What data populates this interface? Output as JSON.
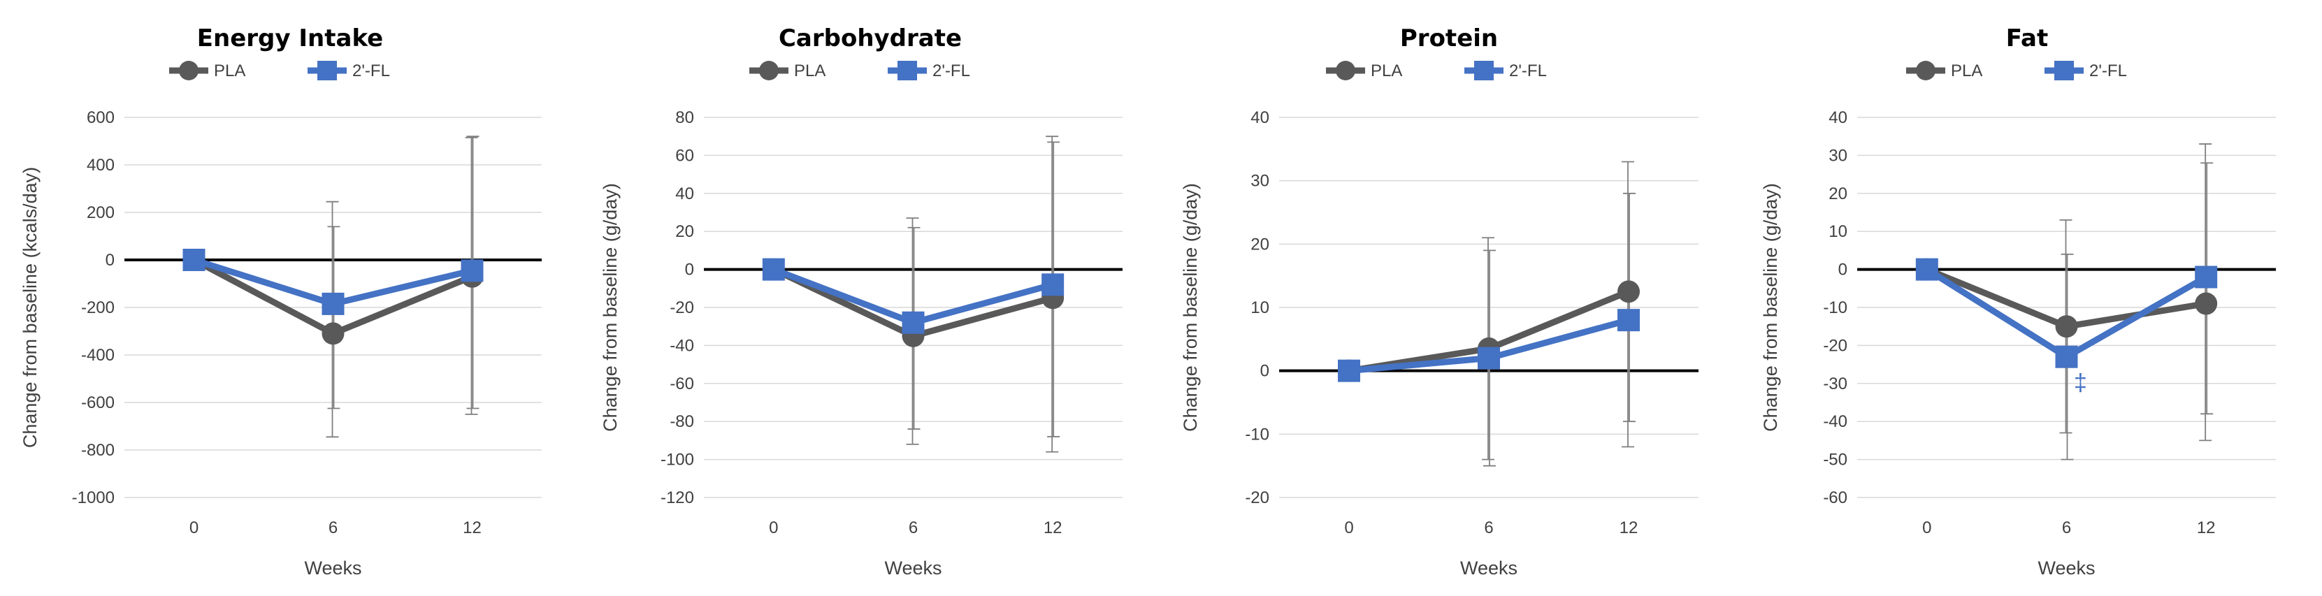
{
  "colors": {
    "pla": "#595959",
    "fl": "#4472c4",
    "zero": "#000000",
    "grid": "#d9d9d9",
    "error": "#7f7f7f"
  },
  "legend": {
    "pla": "PLA",
    "fl": "2'-FL"
  },
  "chart_data": [
    {
      "type": "line",
      "title": "Energy Intake",
      "xlabel": "Weeks",
      "ylabel": "Change from baseline (kcals/day)",
      "categories": [
        "0",
        "6",
        "12"
      ],
      "ylim": [
        -1000,
        600
      ],
      "ystep": 200,
      "series": [
        {
          "name": "PLA",
          "values": [
            0,
            -310,
            -70
          ],
          "err_low": [
            0,
            -745,
            -650
          ],
          "err_high": [
            0,
            245,
            515
          ]
        },
        {
          "name": "2'-FL",
          "values": [
            0,
            -185,
            -45
          ],
          "err_low": [
            0,
            -625,
            -625
          ],
          "err_high": [
            0,
            140,
            520
          ]
        }
      ],
      "annotations": []
    },
    {
      "type": "line",
      "title": "Carbohydrate",
      "xlabel": "Weeks",
      "ylabel": "Change from baseline (g/day)",
      "categories": [
        "0",
        "6",
        "12"
      ],
      "ylim": [
        -120,
        80
      ],
      "ystep": 20,
      "series": [
        {
          "name": "PLA",
          "values": [
            0,
            -35,
            -15
          ],
          "err_low": [
            0,
            -92,
            -96
          ],
          "err_high": [
            0,
            27,
            70
          ]
        },
        {
          "name": "2'-FL",
          "values": [
            0,
            -28,
            -8
          ],
          "err_low": [
            0,
            -84,
            -88
          ],
          "err_high": [
            0,
            22,
            67
          ]
        }
      ],
      "annotations": []
    },
    {
      "type": "line",
      "title": "Protein",
      "xlabel": "Weeks",
      "ylabel": "Change from baseline (g/day)",
      "categories": [
        "0",
        "6",
        "12"
      ],
      "ylim": [
        -20,
        40
      ],
      "ystep": 10,
      "series": [
        {
          "name": "PLA",
          "values": [
            0,
            3.5,
            12.5
          ],
          "err_low": [
            0,
            -14,
            -12
          ],
          "err_high": [
            0,
            21,
            33
          ]
        },
        {
          "name": "2'-FL",
          "values": [
            0,
            2,
            8
          ],
          "err_low": [
            0,
            -15,
            -8
          ],
          "err_high": [
            0,
            19,
            28
          ]
        }
      ],
      "annotations": []
    },
    {
      "type": "line",
      "title": "Fat",
      "xlabel": "Weeks",
      "ylabel": "Change from baseline (g/day)",
      "categories": [
        "0",
        "6",
        "12"
      ],
      "ylim": [
        -60,
        40
      ],
      "ystep": 10,
      "series": [
        {
          "name": "PLA",
          "values": [
            0,
            -15,
            -9
          ],
          "err_low": [
            0,
            -43,
            -45
          ],
          "err_high": [
            0,
            13,
            33
          ]
        },
        {
          "name": "2'-FL",
          "values": [
            0,
            -23,
            -2
          ],
          "err_low": [
            0,
            -50,
            -38
          ],
          "err_high": [
            0,
            4,
            28
          ]
        }
      ],
      "annotations": [
        {
          "text": "‡",
          "x": 6.6,
          "y": -30
        }
      ]
    }
  ]
}
